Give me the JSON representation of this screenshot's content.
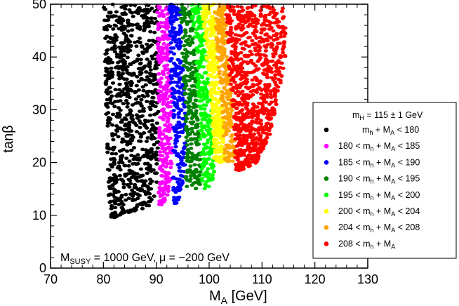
{
  "chart_data": {
    "type": "scatter",
    "title": "",
    "xlabel": "M_A [GeV]",
    "ylabel": "tanβ",
    "xlim": [
      70,
      130
    ],
    "ylim": [
      0,
      50
    ],
    "xticks": [
      70,
      80,
      90,
      100,
      110,
      120,
      130
    ],
    "yticks": [
      0,
      10,
      20,
      30,
      40,
      50
    ],
    "grid": false,
    "legend_position": "right",
    "legend_title": "m_H = 115 ± 1 GeV",
    "annotation": "M_SUSY = 1000 GeV, μ = −200 GeV",
    "series": [
      {
        "name": "m_h + M_A < 180",
        "color": "#000000",
        "bands": [
          [
            50,
            80,
            90.5
          ],
          [
            40,
            80.3,
            90.5
          ],
          [
            30,
            80.5,
            90.5
          ],
          [
            20,
            80.8,
            90.5
          ],
          [
            15,
            81,
            90
          ],
          [
            12,
            81,
            89.5
          ],
          [
            9.5,
            81.5,
            82.5
          ]
        ]
      },
      {
        "name": "180 < m_h + M_A < 185",
        "color": "#ff00ff",
        "bands": [
          [
            50,
            90,
            92.5
          ],
          [
            40,
            90.3,
            92.5
          ],
          [
            30,
            90.5,
            93
          ],
          [
            20,
            90.5,
            93
          ],
          [
            15,
            90.5,
            92.5
          ],
          [
            12,
            90.5,
            91.5
          ]
        ]
      },
      {
        "name": "185 < m_h + M_A < 190",
        "color": "#0000ff",
        "bands": [
          [
            50,
            92.5,
            94.5
          ],
          [
            40,
            92.5,
            95
          ],
          [
            30,
            93,
            95.5
          ],
          [
            20,
            93,
            95.5
          ],
          [
            15,
            93,
            95
          ],
          [
            12,
            93,
            94
          ]
        ]
      },
      {
        "name": "190 < m_h + M_A < 195",
        "color": "#008000",
        "bands": [
          [
            50,
            94.5,
            96.5
          ],
          [
            40,
            95,
            97.5
          ],
          [
            30,
            95.5,
            98
          ],
          [
            20,
            95.5,
            98.5
          ],
          [
            15,
            95.5,
            98.5
          ]
        ]
      },
      {
        "name": "195 < m_h + M_A < 200",
        "color": "#00ff00",
        "bands": [
          [
            50,
            96.5,
            98.5
          ],
          [
            40,
            97.5,
            99.5
          ],
          [
            30,
            98,
            100.5
          ],
          [
            20,
            98.5,
            101
          ],
          [
            15,
            98.5,
            101
          ]
        ]
      },
      {
        "name": "200 < m_h + M_A < 204",
        "color": "#ffff00",
        "bands": [
          [
            50,
            98.5,
            101
          ],
          [
            40,
            99.5,
            101.5
          ],
          [
            30,
            100.5,
            102.5
          ],
          [
            20,
            101,
            103
          ]
        ]
      },
      {
        "name": "204 < m_h + M_A < 208",
        "color": "#ffa500",
        "bands": [
          [
            50,
            101,
            103
          ],
          [
            40,
            101.5,
            103.5
          ],
          [
            30,
            102.5,
            104.5
          ],
          [
            20,
            103,
            105
          ]
        ]
      },
      {
        "name": "208 < m_h + M_A",
        "color": "#ff0000",
        "bands": [
          [
            50,
            103,
            114
          ],
          [
            45,
            103.3,
            114.5
          ],
          [
            40,
            103.5,
            114.5
          ],
          [
            35,
            104,
            113.5
          ],
          [
            30,
            104.5,
            112.5
          ],
          [
            25,
            104.8,
            111.5
          ],
          [
            20,
            105,
            109
          ],
          [
            18.5,
            105,
            106
          ]
        ]
      }
    ]
  }
}
